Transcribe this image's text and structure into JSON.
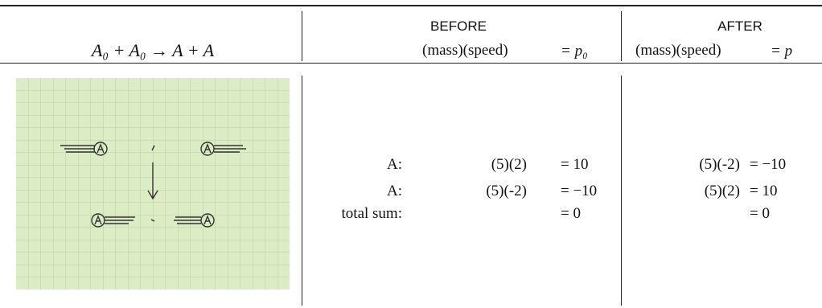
{
  "header": {
    "reaction": "A₀ + A₀ → A + A",
    "before": {
      "title": "BEFORE",
      "product": "(mass)(speed)",
      "momentum": "= p₀"
    },
    "after": {
      "title": "AFTER",
      "product": "(mass)(speed)",
      "momentum": "= p"
    }
  },
  "rows": [
    {
      "label": "A:",
      "before_product": "(5)(2)",
      "before_momentum": "= 10",
      "after_product": "(5)(-2)",
      "after_momentum": "= −10"
    },
    {
      "label": "A:",
      "before_product": "(5)(-2)",
      "before_momentum": "= −10",
      "after_product": "(5)(2)",
      "after_momentum": "= 10"
    },
    {
      "label": "total sum:",
      "before_momentum": "= 0",
      "after_momentum": "= 0"
    }
  ]
}
